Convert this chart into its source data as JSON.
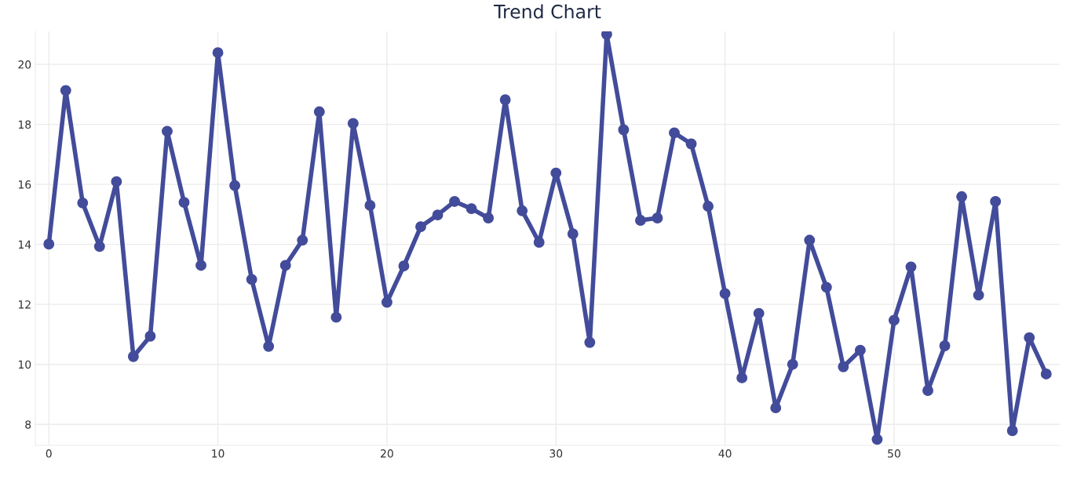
{
  "chart_data": {
    "type": "line",
    "title": "Trend Chart",
    "x": [
      0,
      1,
      2,
      3,
      4,
      5,
      6,
      7,
      8,
      9,
      10,
      11,
      12,
      13,
      14,
      15,
      16,
      17,
      18,
      19,
      20,
      21,
      22,
      23,
      24,
      25,
      26,
      27,
      28,
      29,
      30,
      31,
      32,
      33,
      34,
      35,
      36,
      37,
      38,
      39,
      40,
      41,
      42,
      43,
      44,
      45,
      46,
      47,
      48,
      49,
      50,
      51,
      52,
      53,
      54,
      55,
      56,
      57,
      58,
      59
    ],
    "series": [
      {
        "color": "#434c9a",
        "values": [
          14.01,
          19.13,
          15.38,
          13.93,
          16.09,
          10.26,
          10.94,
          17.77,
          15.4,
          13.3,
          20.39,
          15.96,
          12.83,
          10.6,
          13.3,
          14.14,
          18.42,
          11.57,
          18.03,
          15.3,
          12.07,
          13.28,
          14.59,
          14.98,
          15.43,
          15.19,
          14.88,
          18.82,
          15.12,
          14.07,
          16.38,
          14.35,
          10.73,
          21.0,
          17.82,
          14.8,
          14.88,
          17.72,
          17.35,
          15.27,
          12.36,
          9.55,
          11.7,
          8.55,
          10.0,
          14.14,
          12.57,
          9.92,
          10.47,
          7.5,
          11.47,
          13.25,
          9.13,
          10.62,
          15.59,
          12.31,
          15.43,
          7.79,
          10.89,
          9.68
        ]
      }
    ],
    "xlim": [
      -0.8,
      59.8
    ],
    "ylim": [
      7.3,
      21.1
    ],
    "xticks": [
      0,
      10,
      20,
      30,
      40,
      50
    ],
    "yticks": [
      8,
      10,
      12,
      14,
      16,
      18,
      20
    ],
    "grid": true,
    "marker": "circle",
    "line_style": "solid"
  }
}
